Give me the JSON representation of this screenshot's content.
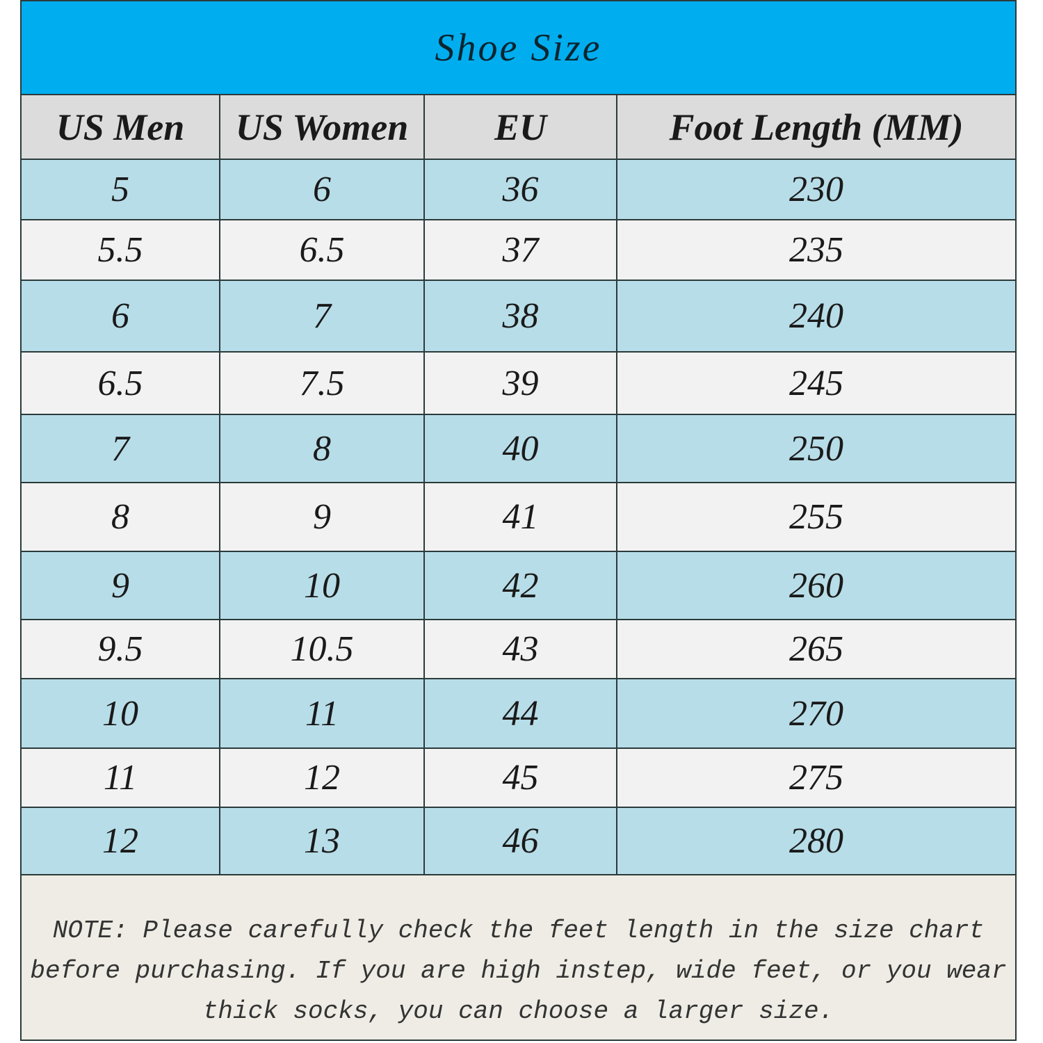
{
  "title": "Shoe Size",
  "colors": {
    "title_bg": "#00aeef",
    "header_bg": "#dcdcdc",
    "row_blue": "#b7dde8",
    "row_white": "#f2f2f2",
    "note_bg": "#eeece4"
  },
  "columns": [
    "US Men",
    "US Women",
    "EU",
    "Foot Length (MM)"
  ],
  "rows": [
    [
      "5",
      "6",
      "36",
      "230"
    ],
    [
      "5.5",
      "6.5",
      "37",
      "235"
    ],
    [
      "6",
      "7",
      "38",
      "240"
    ],
    [
      "6.5",
      "7.5",
      "39",
      "245"
    ],
    [
      "7",
      "8",
      "40",
      "250"
    ],
    [
      "8",
      "9",
      "41",
      "255"
    ],
    [
      "9",
      "10",
      "42",
      "260"
    ],
    [
      "9.5",
      "10.5",
      "43",
      "265"
    ],
    [
      "10",
      "11",
      "44",
      "270"
    ],
    [
      "11",
      "12",
      "45",
      "275"
    ],
    [
      "12",
      "13",
      "46",
      "280"
    ]
  ],
  "note": "NOTE: Please carefully check the feet length in the size chart before purchasing. If you are high instep, wide feet, or you wear thick socks, you can choose a larger size."
}
